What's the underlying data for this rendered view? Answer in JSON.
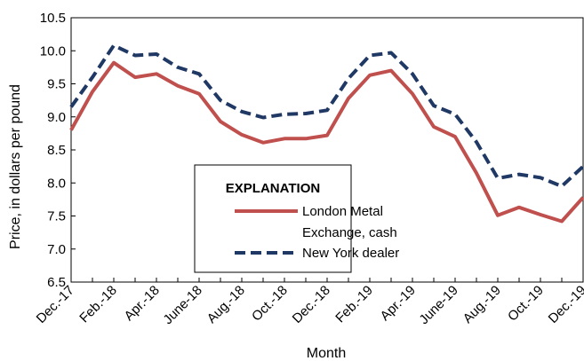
{
  "chart_data": {
    "type": "line",
    "x": [
      "Dec.-17",
      "Jan.-18",
      "Feb.-18",
      "Mar.-18",
      "Apr.-18",
      "May-18",
      "June-18",
      "July-18",
      "Aug.-18",
      "Sep.-18",
      "Oct.-18",
      "Nov.-18",
      "Dec.-18",
      "Jan.-19",
      "Feb.-19",
      "Mar.-19",
      "Apr.-19",
      "May-19",
      "June-19",
      "July-19",
      "Aug.-19",
      "Sep.-19",
      "Oct.-19",
      "Nov.-19",
      "Dec.-19"
    ],
    "xtick_labels": [
      "Dec.-17",
      "Feb.-18",
      "Apr.-18",
      "June-18",
      "Aug.-18",
      "Oct.-18",
      "Dec.-18",
      "Feb.-19",
      "Apr.-19",
      "June-19",
      "Aug.-19",
      "Oct.-19",
      "Dec.-19"
    ],
    "xlabel": "Month",
    "ylabel": "Price, in dollars per pound",
    "ylim": [
      6.5,
      10.5
    ],
    "yticks": [
      6.5,
      7.0,
      7.5,
      8.0,
      8.5,
      9.0,
      9.5,
      10.0,
      10.5
    ],
    "ytick_labels": [
      "6.5",
      "7.0",
      "7.5",
      "8.0",
      "8.5",
      "9.0",
      "9.5",
      "10.0",
      "10.5"
    ],
    "grid": false,
    "legend_title": "EXPLANATION",
    "legend_position": "center-bottom",
    "series": [
      {
        "name": "London Metal Exchange, cash",
        "legend_lines": [
          "London Metal",
          "Exchange, cash"
        ],
        "style": "solid",
        "color": "#c0504d",
        "values": [
          8.8,
          9.38,
          9.82,
          9.6,
          9.65,
          9.47,
          9.35,
          8.93,
          8.73,
          8.61,
          8.67,
          8.67,
          8.72,
          9.28,
          9.63,
          9.7,
          9.35,
          8.85,
          8.7,
          8.15,
          7.51,
          7.63,
          7.52,
          7.42,
          7.78
        ]
      },
      {
        "name": "New York dealer",
        "legend_lines": [
          "New York dealer"
        ],
        "style": "dashed",
        "color": "#1f3864",
        "values": [
          9.15,
          9.6,
          10.08,
          9.93,
          9.95,
          9.75,
          9.65,
          9.25,
          9.08,
          8.99,
          9.04,
          9.05,
          9.1,
          9.58,
          9.93,
          9.97,
          9.65,
          9.17,
          9.04,
          8.62,
          8.07,
          8.13,
          8.08,
          7.95,
          8.25
        ]
      }
    ]
  }
}
